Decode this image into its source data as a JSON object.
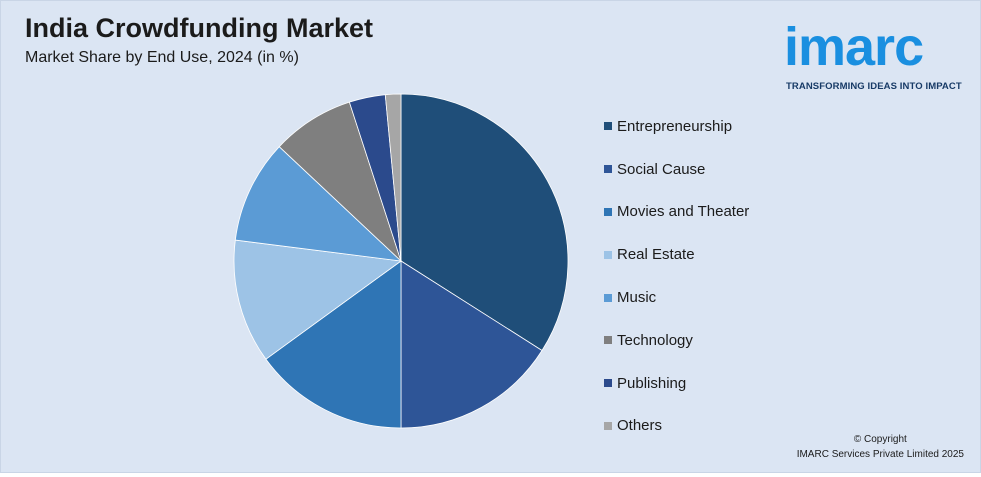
{
  "header": {
    "title": "India Crowdfunding Market",
    "subtitle": "Market Share by End Use, 2024 (in %)"
  },
  "logo": {
    "text": "imarc",
    "tagline": "TRANSFORMING IDEAS INTO IMPACT",
    "color": "#1a8fe0"
  },
  "footer": {
    "copyright_line1": "© Copyright",
    "copyright_line2": "IMARC Services Private Limited 2025"
  },
  "chart_data": {
    "type": "pie",
    "title": "India Crowdfunding Market",
    "subtitle": "Market Share by End Use, 2024 (in %)",
    "legend_position": "right",
    "categories": [
      "Entrepreneurship",
      "Social Cause",
      "Movies and Theater",
      "Real Estate",
      "Music",
      "Technology",
      "Publishing",
      "Others"
    ],
    "values": [
      34,
      16,
      15,
      12,
      10,
      8,
      3.5,
      1.5
    ],
    "colors": [
      "#1f4e79",
      "#2e5597",
      "#2f75b5",
      "#9dc3e6",
      "#5b9bd5",
      "#7f7f7f",
      "#2b4a8c",
      "#a6a6a6"
    ]
  }
}
